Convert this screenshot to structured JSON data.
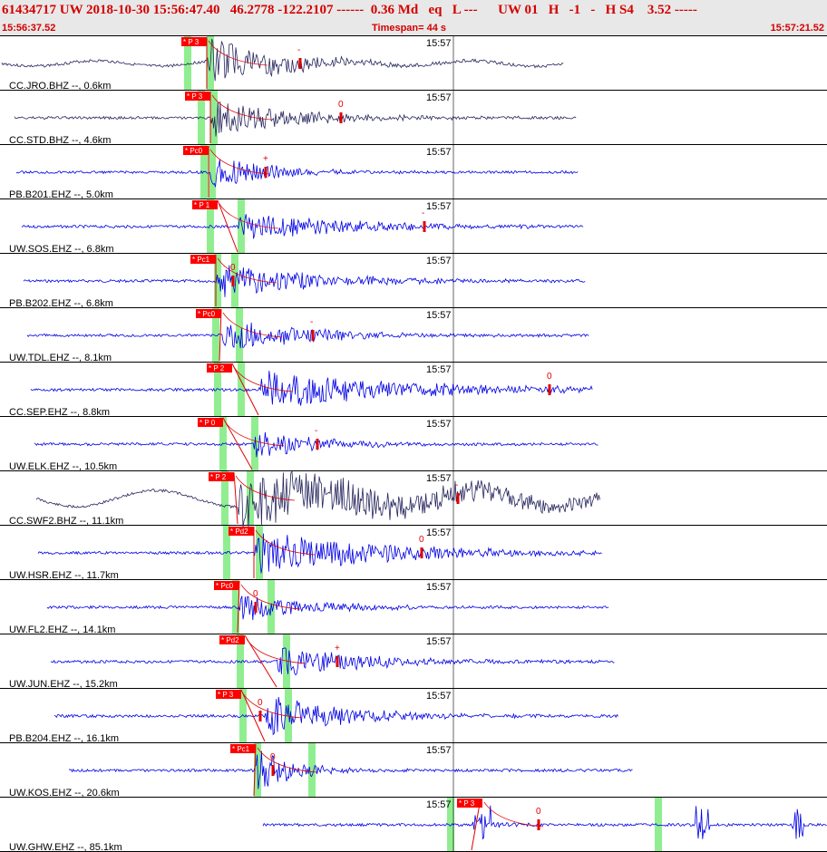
{
  "header": {
    "title": "61434717 UW 2018-10-30 15:56:47.40   46.2778 -122.2107 ------  0.36 Md   eq   L ---      UW 01   H   -1   -   H S4    3.52 -----",
    "start_time": "15:56:37.52",
    "timespan": "Timespan=  44 s",
    "end_time": "15:57:21.52"
  },
  "minute_label": "15:57",
  "colors": {
    "header_text": "#d40000",
    "wave_blue": "#0000e6",
    "wave_dark": "#26265e",
    "pick_bg": "#ff0000",
    "phase_window": "#90ee90"
  },
  "traces": [
    {
      "label": "CC.JRO.BHZ --, 0.6km",
      "color": "#26265e",
      "pick": "P 3",
      "coda": "-",
      "long_period": true
    },
    {
      "label": "CC.STD.BHZ --, 4.6km",
      "color": "#26265e",
      "pick": "P 3",
      "coda": "0"
    },
    {
      "label": "PB.B201.EHZ --, 5.0km",
      "color": "#0000e6",
      "pick": "Pc0",
      "coda": "+"
    },
    {
      "label": "UW.SOS.EHZ --, 6.8km",
      "color": "#0000e6",
      "pick": "P 1",
      "coda": "-"
    },
    {
      "label": "PB.B202.EHZ --, 6.8km",
      "color": "#0000e6",
      "pick": "Pc1",
      "coda": "0"
    },
    {
      "label": "UW.TDL.EHZ --, 8.1km",
      "color": "#0000e6",
      "pick": "Pc0",
      "coda": "-"
    },
    {
      "label": "CC.SEP.EHZ --, 8.8km",
      "color": "#0000e6",
      "pick": "P 2",
      "coda": "0"
    },
    {
      "label": "UW.ELK.EHZ --, 10.5km",
      "color": "#0000e6",
      "pick": "P 0",
      "coda": "-"
    },
    {
      "label": "CC.SWF2.BHZ --, 11.1km",
      "color": "#26265e",
      "pick": "P 2",
      "coda": "-",
      "long_period": true
    },
    {
      "label": "UW.HSR.EHZ --, 11.7km",
      "color": "#0000e6",
      "pick": "Pd2",
      "coda": "0"
    },
    {
      "label": "UW.FL2.EHZ --, 14.1km",
      "color": "#0000e6",
      "pick": "Pc0",
      "coda": "0"
    },
    {
      "label": "UW.JUN.EHZ --, 15.2km",
      "color": "#0000e6",
      "pick": "Pd2",
      "coda": "+"
    },
    {
      "label": "PB.B204.EHZ --, 16.1km",
      "color": "#0000e6",
      "pick": "P 3",
      "coda": "0"
    },
    {
      "label": "UW.KOS.EHZ --, 20.6km",
      "color": "#0000e6",
      "pick": "Pc1",
      "coda": "0"
    },
    {
      "label": "UW.GHW.EHZ --, 85.1km",
      "color": "#0000e6",
      "pick": "P 3",
      "coda": "0"
    }
  ]
}
